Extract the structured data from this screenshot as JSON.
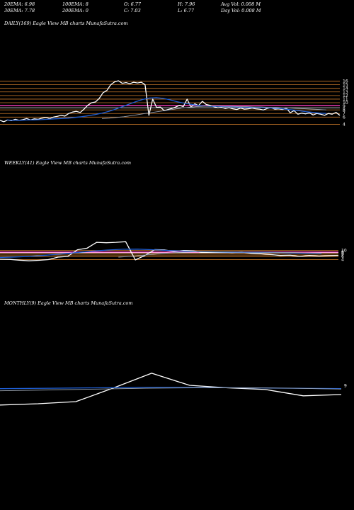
{
  "header": {
    "row1": [
      "20EMA: 6.98",
      "100EMA: 8",
      "O: 6.77",
      "H: 7.96",
      "Avg Vol: 0.008 M"
    ],
    "row2": [
      "30EMA: 7.78",
      "200EMA: 0",
      "C: 7.03",
      "L: 6.77",
      "Day Vol: 0.008 M"
    ]
  },
  "colors": {
    "background": "#000000",
    "price": "#ffffff",
    "ema": "#1f5fd6",
    "ema_slow": "#9aa3b0",
    "level": "#c8782a",
    "pink": "#ff3fbf",
    "white_level": "#ffffff"
  },
  "chart_data": [
    {
      "type": "line",
      "title": "DAILY(169) Eagle  View  MB charts MunafaSutra.com",
      "yticks": [
        16,
        15,
        14,
        13,
        12,
        11,
        10,
        9,
        8,
        7,
        6,
        4
      ],
      "ylim": [
        3.5,
        16.5
      ],
      "levels": [
        16,
        15,
        14,
        13,
        12,
        11,
        10,
        8,
        7,
        6,
        4
      ],
      "pink_level": 9.2,
      "white_level": 8.6,
      "series": [
        {
          "role": "price",
          "values": [
            5.1,
            4.7,
            5.2,
            5.0,
            5.4,
            5.1,
            5.3,
            5.6,
            5.2,
            5.5,
            5.4,
            5.7,
            5.9,
            5.6,
            6.0,
            6.2,
            6.5,
            6.3,
            7.0,
            7.4,
            7.6,
            7.3,
            8.2,
            9.3,
            10.0,
            10.2,
            11.2,
            12.8,
            13.4,
            15.0,
            15.8,
            16.1,
            15.4,
            15.6,
            15.3,
            15.7,
            15.5,
            15.7,
            15.0,
            6.5,
            11.0,
            8.7,
            8.8,
            7.8,
            8.1,
            8.4,
            8.8,
            9.3,
            8.9,
            11.0,
            8.8,
            9.7,
            9.2,
            10.4,
            9.5,
            9.3,
            8.9,
            8.6,
            8.7,
            8.4,
            8.6,
            8.3,
            8.1,
            8.5,
            8.2,
            8.3,
            8.5,
            8.3,
            8.2,
            8.0,
            8.4,
            8.6,
            8.2,
            8.3,
            8.1,
            8.5,
            7.2,
            7.8,
            6.8,
            7.1,
            6.9,
            7.2,
            6.6,
            7.0,
            6.8,
            6.5,
            7.0,
            6.8,
            7.3,
            6.5
          ]
        },
        {
          "role": "ema",
          "values": [
            5.2,
            5.1,
            5.1,
            5.2,
            5.2,
            5.3,
            5.4,
            5.5,
            5.6,
            5.7,
            5.9,
            6.1,
            6.4,
            6.7,
            7.1,
            7.6,
            8.2,
            8.9,
            9.6,
            10.3,
            10.9,
            11.3,
            11.4,
            11.2,
            10.8,
            10.3,
            9.9,
            9.6,
            9.3,
            9.1,
            9.0,
            9.0,
            8.9,
            8.9,
            8.8,
            8.8,
            8.7,
            8.7,
            8.6,
            8.5,
            8.4,
            8.2,
            8.0,
            7.8,
            7.5,
            7.3,
            7.1,
            7.0
          ]
        },
        {
          "role": "ema_slow",
          "values": [
            5.6,
            5.7,
            5.9,
            6.1,
            6.4,
            6.7,
            7.0,
            7.3,
            7.6,
            7.9,
            8.2,
            8.5,
            8.7,
            8.9,
            9.0,
            9.1,
            9.1,
            9.0,
            9.0,
            8.9,
            8.9,
            8.8,
            8.8,
            8.7,
            8.7,
            8.6,
            8.5,
            8.4,
            8.3,
            8.2,
            8.1,
            8.0
          ]
        }
      ]
    },
    {
      "type": "line",
      "title": "WEEKLY(41) Eagle  View  MB charts MunafaSutra.com",
      "yticks": [
        10,
        9,
        8,
        7,
        6,
        4
      ],
      "ylim": [
        0,
        22
      ],
      "levels": [
        10,
        9,
        8,
        7,
        6,
        4
      ],
      "pink_level": 9.0,
      "white_level": 8.5,
      "series": [
        {
          "role": "price",
          "values": [
            4.2,
            4.1,
            3.6,
            3.2,
            3.5,
            4.0,
            5.6,
            6.1,
            10.5,
            11.5,
            15.4,
            15.1,
            15.4,
            15.8,
            3.8,
            6.8,
            10.6,
            10.4,
            9.3,
            10.0,
            9.8,
            8.7,
            8.8,
            8.9,
            8.6,
            9.0,
            8.1,
            7.8,
            7.3,
            6.7,
            6.9,
            6.1,
            6.7,
            6.3,
            6.6,
            6.8
          ]
        },
        {
          "role": "ema",
          "values": [
            5.4,
            5.7,
            6.2,
            6.9,
            7.7,
            8.6,
            9.5,
            10.3,
            10.8,
            10.9,
            10.5,
            10.0,
            9.6,
            9.3,
            9.1,
            8.9,
            8.8,
            8.7,
            8.6,
            8.4,
            8.2,
            8.0
          ]
        },
        {
          "role": "ema_slow",
          "values": [
            5.6,
            6.2,
            7.0,
            7.8,
            8.5,
            9.0,
            9.2,
            9.2,
            9.1,
            9.0,
            8.9,
            8.8,
            8.7,
            8.6,
            8.4,
            8.2
          ]
        }
      ]
    },
    {
      "type": "line",
      "title": "MONTHLY(9) Eagle  View  MB charts MunafaSutra.com",
      "yticks": [
        9
      ],
      "ylim": [
        2.5,
        13.5
      ],
      "levels": [],
      "pink_level": null,
      "white_level": null,
      "series": [
        {
          "role": "price",
          "values": [
            4.4,
            4.7,
            5.2,
            8.5,
            12.0,
            9.1,
            8.5,
            8.1,
            6.6,
            6.9
          ]
        },
        {
          "role": "ema",
          "values": [
            8.3,
            8.4,
            8.5,
            8.6,
            8.6,
            8.5,
            8.4,
            8.3
          ]
        },
        {
          "role": "ema_slow",
          "values": [
            7.8,
            8.0,
            8.2,
            8.4,
            8.5,
            8.5,
            8.4,
            8.2
          ]
        }
      ]
    }
  ]
}
